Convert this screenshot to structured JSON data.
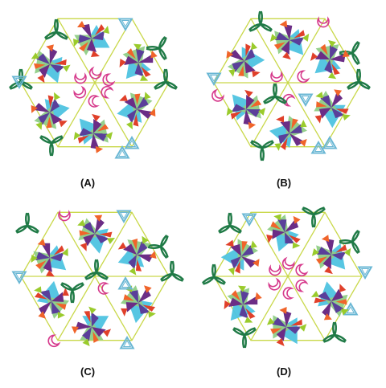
{
  "options": [
    {
      "label": "(A)",
      "variant": "A"
    },
    {
      "label": "(B)",
      "variant": "B"
    },
    {
      "label": "(C)",
      "variant": "C"
    },
    {
      "label": "(D)",
      "variant": "D"
    }
  ],
  "colors": {
    "outline": "#c9d84a",
    "tri_blue": "#4ec3e0",
    "tri_green": "#8fce86",
    "tri_lime": "#9acb2c",
    "purple": "#6b2d86",
    "violet": "#5a3f9a",
    "orange": "#f0642a",
    "red": "#e0402a",
    "magenta": "#d63a8c",
    "dark_green": "#1f7a46",
    "outline_blue": "#6ab7d4"
  },
  "icons": [
    "pinwheel-icon",
    "trefoil-icon",
    "crescent-icon",
    "outlined-triangle-icon"
  ]
}
